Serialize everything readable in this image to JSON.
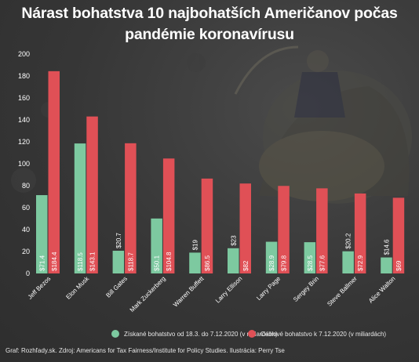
{
  "chart_data": {
    "type": "bar",
    "title": "Nárast bohatstva 10 najbohatších Američanov počas\npandémie koronavírusu",
    "categories": [
      "Jeff Bezos",
      "Elon Musk",
      "Bill Gates",
      "Mark Zuckerberg",
      "Warren Buffett",
      "Larry Ellison",
      "Larry Page",
      "Sergey Brin",
      "Steve Ballmer",
      "Alice Walton"
    ],
    "series": [
      {
        "name": "Získané bohatstvo od 18.3. do 7.12.2020 (v miliardách)",
        "values": [
          71.4,
          118.5,
          20.7,
          50.1,
          19,
          23,
          28.9,
          28.5,
          20.2,
          14.6
        ],
        "labels": [
          "$71.4",
          "$118.5",
          "$20.7",
          "$50.1",
          "$19",
          "$23",
          "$28.9",
          "$28.5",
          "$20.2",
          "$14.6"
        ],
        "color": "#7dc9a0"
      },
      {
        "name": "Celkové bohatstvo k 7.12.2020 (v miliardách)",
        "values": [
          184.4,
          143.1,
          118.7,
          104.8,
          86.5,
          82,
          79.8,
          77.6,
          72.9,
          69
        ],
        "labels": [
          "$184.4",
          "$143.1",
          "$118.7",
          "$104.8",
          "$86.5",
          "$82",
          "$79.8",
          "$77.6",
          "$72.9",
          "$69"
        ],
        "color": "#e05056"
      }
    ],
    "yticks": [
      0,
      20,
      40,
      60,
      80,
      100,
      120,
      140,
      160,
      180,
      200
    ],
    "ylim": [
      0,
      200
    ],
    "grid": false,
    "legend_position": "bottom"
  },
  "source": "Graf: Rozhľady.sk. Zdroj: Americans for Tax Fairness/Institute for Policy Studies. Ilustrácia: Perry Tse",
  "colors": {
    "background": "#363636",
    "text": "#ffffff"
  }
}
